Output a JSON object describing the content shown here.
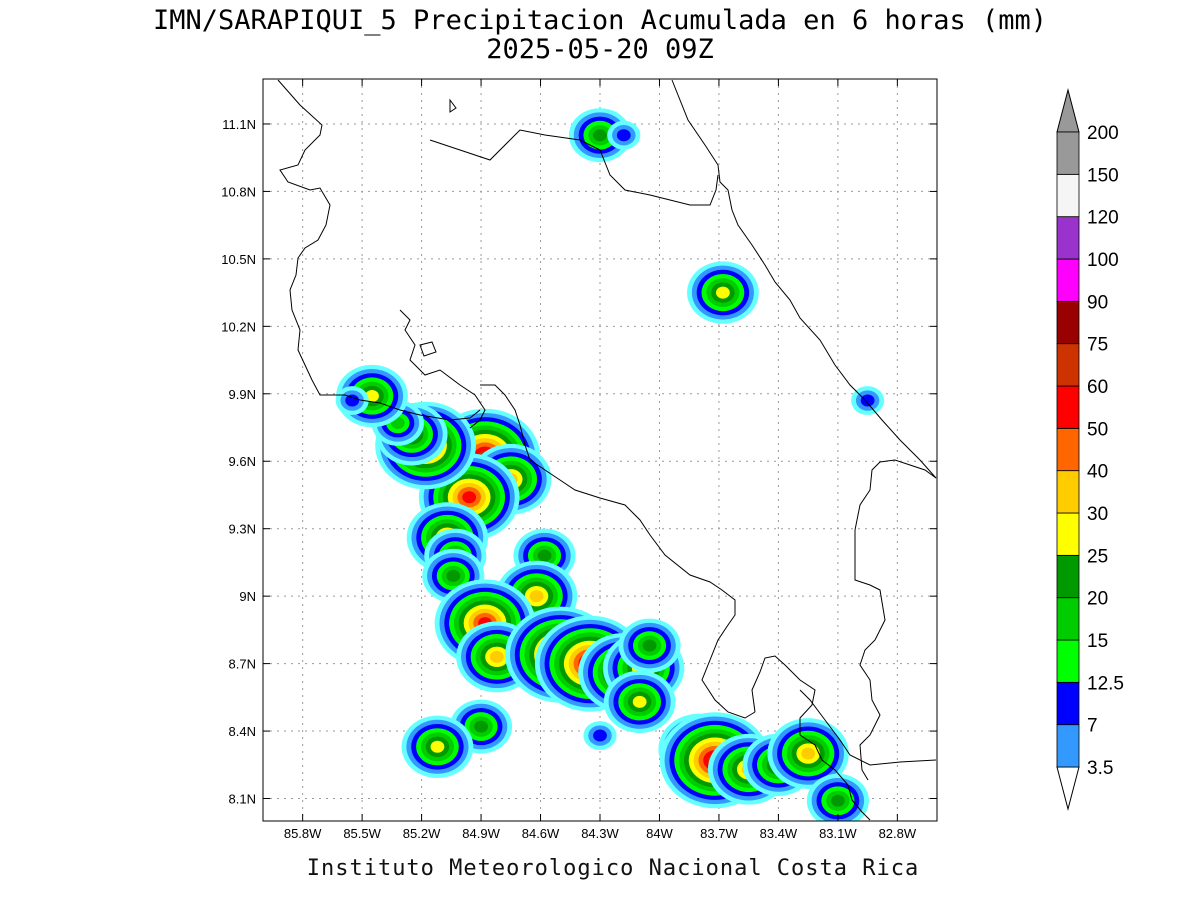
{
  "title": {
    "line1": "IMN/SARAPIQUI_5 Precipitacion Acumulada en 6 horas (mm)",
    "line2": "2025-05-20 09Z"
  },
  "footer": "Instituto Meteorologico Nacional Costa Rica",
  "map": {
    "lon_range": [
      -86.0,
      -82.6
    ],
    "lat_range": [
      8.0,
      11.3
    ],
    "x_ticks": [
      {
        "value": -85.8,
        "label": "85.8W"
      },
      {
        "value": -85.5,
        "label": "85.5W"
      },
      {
        "value": -85.2,
        "label": "85.2W"
      },
      {
        "value": -84.9,
        "label": "84.9W"
      },
      {
        "value": -84.6,
        "label": "84.6W"
      },
      {
        "value": -84.3,
        "label": "84.3W"
      },
      {
        "value": -84.0,
        "label": "84W"
      },
      {
        "value": -83.7,
        "label": "83.7W"
      },
      {
        "value": -83.4,
        "label": "83.4W"
      },
      {
        "value": -83.1,
        "label": "83.1W"
      },
      {
        "value": -82.8,
        "label": "82.8W"
      }
    ],
    "y_ticks": [
      {
        "value": 8.1,
        "label": "8.1N"
      },
      {
        "value": 8.4,
        "label": "8.4N"
      },
      {
        "value": 8.7,
        "label": "8.7N"
      },
      {
        "value": 9.0,
        "label": "9N"
      },
      {
        "value": 9.3,
        "label": "9.3N"
      },
      {
        "value": 9.6,
        "label": "9.6N"
      },
      {
        "value": 9.9,
        "label": "9.9N"
      },
      {
        "value": 10.2,
        "label": "10.2N"
      },
      {
        "value": 10.5,
        "label": "10.5N"
      },
      {
        "value": 10.8,
        "label": "10.8N"
      },
      {
        "value": 11.1,
        "label": "11.1N"
      }
    ],
    "grid": "dotted",
    "colors": {
      "coastline": "#000000",
      "grid": "#9a9a9a"
    }
  },
  "legend": {
    "levels": [
      {
        "label": "3.5",
        "color": "#66ffff"
      },
      {
        "label": "7",
        "color": "#3399ff"
      },
      {
        "label": "12.5",
        "color": "#0000ff"
      },
      {
        "label": "15",
        "color": "#00ff00"
      },
      {
        "label": "20",
        "color": "#00cc00"
      },
      {
        "label": "25",
        "color": "#009900"
      },
      {
        "label": "30",
        "color": "#ffff00"
      },
      {
        "label": "40",
        "color": "#ffcc00"
      },
      {
        "label": "50",
        "color": "#ff6600"
      },
      {
        "label": "60",
        "color": "#ff0000"
      },
      {
        "label": "75",
        "color": "#cc3300"
      },
      {
        "label": "90",
        "color": "#990000"
      },
      {
        "label": "100",
        "color": "#ff00ff"
      },
      {
        "label": "120",
        "color": "#9933cc"
      },
      {
        "label": "150",
        "color": "#f5f5f5"
      },
      {
        "label": "200",
        "color": "#999999"
      }
    ],
    "bottom_arrow_color": "#ffffff",
    "top_arrow_color": "#999999"
  },
  "precip_cells": [
    {
      "lon": -84.88,
      "lat": 9.62,
      "peak": 75
    },
    {
      "lon": -84.75,
      "lat": 9.52,
      "peak": 40
    },
    {
      "lon": -84.96,
      "lat": 9.44,
      "peak": 60
    },
    {
      "lon": -85.18,
      "lat": 9.67,
      "peak": 60
    },
    {
      "lon": -85.25,
      "lat": 9.72,
      "peak": 30
    },
    {
      "lon": -85.32,
      "lat": 9.77,
      "peak": 20
    },
    {
      "lon": -85.07,
      "lat": 9.26,
      "peak": 40
    },
    {
      "lon": -85.03,
      "lat": 9.18,
      "peak": 25
    },
    {
      "lon": -85.04,
      "lat": 9.09,
      "peak": 25
    },
    {
      "lon": -84.58,
      "lat": 9.18,
      "peak": 25
    },
    {
      "lon": -84.62,
      "lat": 9.0,
      "peak": 40
    },
    {
      "lon": -84.88,
      "lat": 8.88,
      "peak": 60
    },
    {
      "lon": -84.82,
      "lat": 8.73,
      "peak": 40
    },
    {
      "lon": -84.5,
      "lat": 8.74,
      "peak": 75
    },
    {
      "lon": -84.35,
      "lat": 8.7,
      "peak": 75
    },
    {
      "lon": -84.18,
      "lat": 8.66,
      "peak": 50
    },
    {
      "lon": -84.08,
      "lat": 8.68,
      "peak": 40
    },
    {
      "lon": -84.05,
      "lat": 8.78,
      "peak": 25
    },
    {
      "lon": -84.1,
      "lat": 8.53,
      "peak": 30
    },
    {
      "lon": -84.9,
      "lat": 8.42,
      "peak": 25
    },
    {
      "lon": -85.12,
      "lat": 8.33,
      "peak": 30
    },
    {
      "lon": -83.8,
      "lat": 8.32,
      "peak": 40
    },
    {
      "lon": -83.72,
      "lat": 8.27,
      "peak": 75
    },
    {
      "lon": -83.55,
      "lat": 8.23,
      "peak": 40
    },
    {
      "lon": -83.4,
      "lat": 8.25,
      "peak": 30
    },
    {
      "lon": -83.25,
      "lat": 8.3,
      "peak": 40
    },
    {
      "lon": -83.1,
      "lat": 8.09,
      "peak": 25
    },
    {
      "lon": -83.68,
      "lat": 10.35,
      "peak": 30
    },
    {
      "lon": -84.3,
      "lat": 11.05,
      "peak": 25
    },
    {
      "lon": -84.18,
      "lat": 11.05,
      "peak": 12.5
    },
    {
      "lon": -85.45,
      "lat": 9.89,
      "peak": 30
    },
    {
      "lon": -85.55,
      "lat": 9.87,
      "peak": 12.5
    },
    {
      "lon": -82.95,
      "lat": 9.87,
      "peak": 12.5
    },
    {
      "lon": -84.3,
      "lat": 8.38,
      "peak": 12.5
    }
  ]
}
